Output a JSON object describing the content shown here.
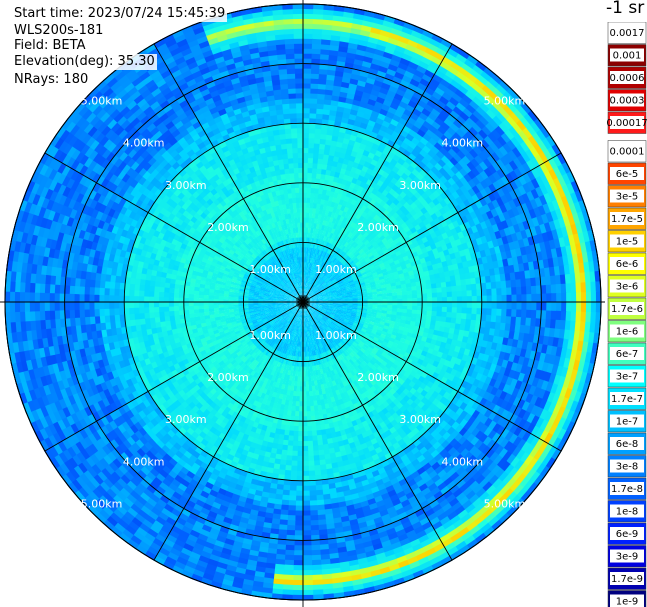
{
  "header": {
    "start_time": "Start time: 2023/07/24 15:45:39",
    "instrument": "WLS200s-181",
    "field": "Field: BETA",
    "elevation": "Elevation(deg): 35.30",
    "nrays": "NRays: 180"
  },
  "colorbar": {
    "title": "-1 sr",
    "labels": [
      "0.0017",
      "0.001",
      "0.0006",
      "0.0003",
      "0.00017",
      "0.0001",
      "6e-5",
      "3e-5",
      "1.7e-5",
      "1e-5",
      "6e-6",
      "3e-6",
      "1.7e-6",
      "1e-6",
      "6e-7",
      "3e-7",
      "1.7e-7",
      "1e-7",
      "6e-8",
      "3e-8",
      "1.7e-8",
      "1e-8",
      "6e-9",
      "3e-9",
      "1.7e-9",
      "1e-9"
    ],
    "colors": [
      "#ffffff",
      "#8b0000",
      "#b00000",
      "#e00000",
      "#ff1a1a",
      "#ffffff",
      "#ff4500",
      "#ff7f00",
      "#ffa500",
      "#ffd000",
      "#ffff00",
      "#dfff20",
      "#c0ff40",
      "#7fff7f",
      "#40ffbf",
      "#00ffff",
      "#00e0ff",
      "#00c0ff",
      "#00a0ff",
      "#0080ff",
      "#0060ff",
      "#0040ff",
      "#0020ff",
      "#0000e0",
      "#0000b0",
      "#000080"
    ]
  },
  "chart_data": {
    "type": "heatmap",
    "projection": "polar-ppi",
    "rays": 180,
    "range_rings_km": [
      1,
      2,
      3,
      4,
      5
    ],
    "range_labels": [
      "1.00km",
      "2.00km",
      "3.00km",
      "4.00km",
      "5.00km"
    ],
    "max_range_km": 5.0,
    "spokes_deg": [
      0,
      30,
      60,
      90,
      120,
      150,
      180,
      210,
      240,
      270,
      300,
      330
    ],
    "features": [
      {
        "description": "high-backscatter arc",
        "range_km": [
          4.55,
          4.8
        ],
        "azimuth_deg": [
          -20,
          185
        ],
        "level": "3e-6"
      },
      {
        "description": "near-field moderate",
        "range_km": [
          0.0,
          1.0
        ],
        "level": "1e-7"
      },
      {
        "description": "mid-field",
        "range_km": [
          1.0,
          3.2
        ],
        "level": "3e-7"
      },
      {
        "description": "far-field background",
        "range_km": [
          3.2,
          5.0
        ],
        "level": "6e-8"
      }
    ]
  }
}
